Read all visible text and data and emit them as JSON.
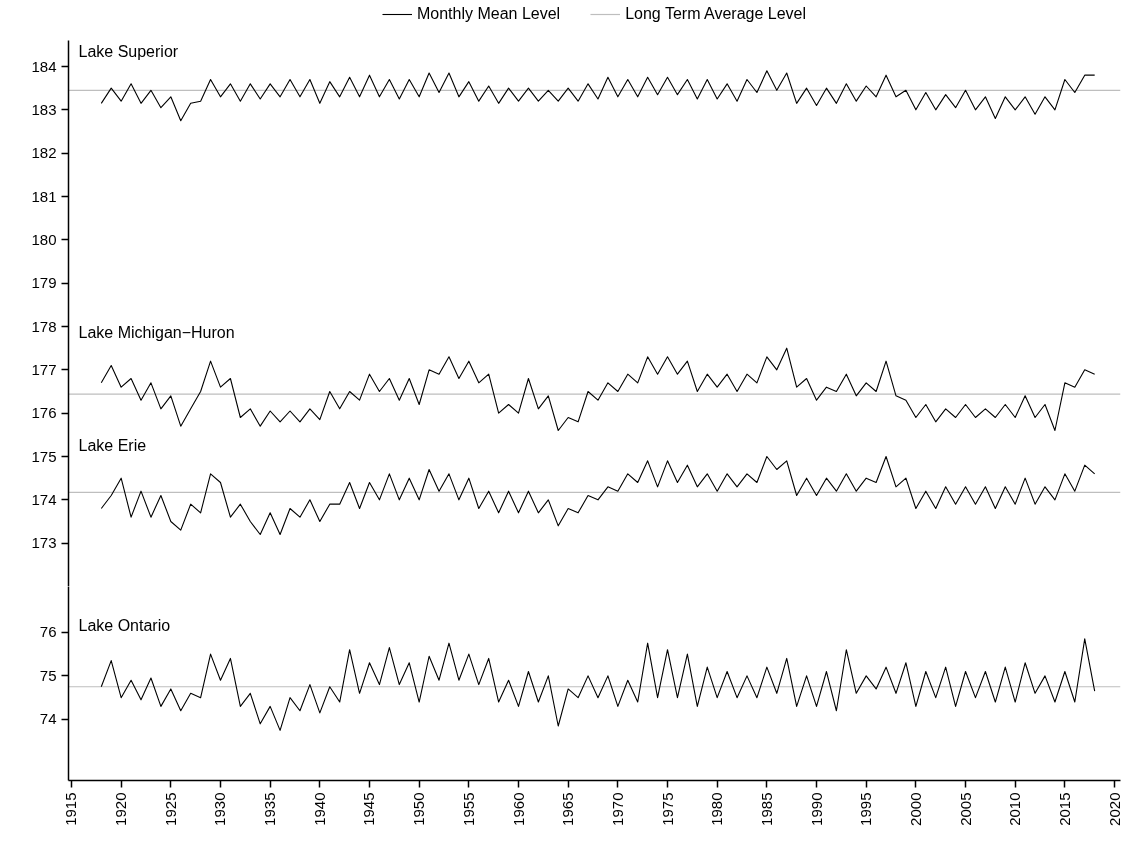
{
  "chart_data": [
    {
      "type": "line",
      "xlim": [
        1914.7,
        2020.6
      ],
      "ylim": [
        172,
        184.6
      ],
      "yticks": [
        173,
        174,
        175,
        176,
        177,
        178,
        179,
        180,
        181,
        182,
        183,
        184
      ],
      "tick_labels": "y",
      "legend": "top",
      "line_style": "solid",
      "marker": "none",
      "x": [
        1918,
        1919,
        1920,
        1921,
        1922,
        1923,
        1924,
        1925,
        1926,
        1927,
        1928,
        1929,
        1930,
        1931,
        1932,
        1933,
        1934,
        1935,
        1936,
        1937,
        1938,
        1939,
        1940,
        1941,
        1942,
        1943,
        1944,
        1945,
        1946,
        1947,
        1948,
        1949,
        1950,
        1951,
        1952,
        1953,
        1954,
        1955,
        1956,
        1957,
        1958,
        1959,
        1960,
        1961,
        1962,
        1963,
        1964,
        1965,
        1966,
        1967,
        1968,
        1969,
        1970,
        1971,
        1972,
        1973,
        1974,
        1975,
        1976,
        1977,
        1978,
        1979,
        1980,
        1981,
        1982,
        1983,
        1984,
        1985,
        1986,
        1987,
        1988,
        1989,
        1990,
        1991,
        1992,
        1993,
        1994,
        1995,
        1996,
        1997,
        1998,
        1999,
        2000,
        2001,
        2002,
        2003,
        2004,
        2005,
        2006,
        2007,
        2008,
        2009,
        2010,
        2011,
        2012,
        2013,
        2014,
        2015,
        2016,
        2017,
        2018
      ],
      "series": [
        {
          "name": "Monthly Mean Level",
          "color": "#000000",
          "values": [
            183.15,
            183.5,
            183.2,
            183.6,
            183.15,
            183.45,
            183.05,
            183.3,
            182.75,
            183.15,
            183.2,
            183.7,
            183.3,
            183.6,
            183.2,
            183.6,
            183.25,
            183.6,
            183.3,
            183.7,
            183.3,
            183.7,
            183.15,
            183.65,
            183.3,
            183.75,
            183.3,
            183.8,
            183.3,
            183.7,
            183.25,
            183.7,
            183.3,
            183.85,
            183.4,
            183.85,
            183.3,
            183.65,
            183.2,
            183.55,
            183.15,
            183.5,
            183.2,
            183.5,
            183.2,
            183.45,
            183.2,
            183.5,
            183.2,
            183.6,
            183.25,
            183.75,
            183.3,
            183.7,
            183.3,
            183.75,
            183.35,
            183.75,
            183.35,
            183.7,
            183.25,
            183.7,
            183.25,
            183.6,
            183.2,
            183.7,
            183.4,
            183.9,
            183.45,
            183.85,
            183.15,
            183.5,
            183.1,
            183.5,
            183.15,
            183.6,
            183.2,
            183.55,
            183.3,
            183.8,
            183.3,
            183.45,
            183.0,
            183.4,
            183.0,
            183.35,
            183.05,
            183.45,
            183.0,
            183.3,
            182.8,
            183.3,
            183.0,
            183.3,
            182.9,
            183.3,
            183.0,
            183.7,
            183.4,
            183.8,
            183.8
          ]
        },
        {
          "color": "#000000",
          "values": [
            176.7,
            177.1,
            176.6,
            176.8,
            176.3,
            176.7,
            176.1,
            176.4,
            175.7,
            176.1,
            176.5,
            177.2,
            176.6,
            176.8,
            175.9,
            176.1,
            175.7,
            176.05,
            175.8,
            176.05,
            175.8,
            176.1,
            175.85,
            176.5,
            176.1,
            176.5,
            176.3,
            176.9,
            176.5,
            176.8,
            176.3,
            176.8,
            176.2,
            177.0,
            176.9,
            177.3,
            176.8,
            177.2,
            176.7,
            176.9,
            176.0,
            176.2,
            176.0,
            176.8,
            176.1,
            176.4,
            175.6,
            175.9,
            175.8,
            176.5,
            176.3,
            176.7,
            176.5,
            176.9,
            176.7,
            177.3,
            176.9,
            177.3,
            176.9,
            177.2,
            176.5,
            176.9,
            176.6,
            176.9,
            176.5,
            176.9,
            176.7,
            177.3,
            177.0,
            177.5,
            176.6,
            176.8,
            176.3,
            176.6,
            176.5,
            176.9,
            176.4,
            176.7,
            176.5,
            177.2,
            176.4,
            176.3,
            175.9,
            176.2,
            175.8,
            176.1,
            175.9,
            176.2,
            175.9,
            176.1,
            175.9,
            176.2,
            175.9,
            176.4,
            175.9,
            176.2,
            175.6,
            176.7,
            176.6,
            177.0,
            176.9
          ]
        },
        {
          "color": "#000000",
          "values": [
            173.8,
            174.1,
            174.5,
            173.6,
            174.2,
            173.6,
            174.1,
            173.5,
            173.3,
            173.9,
            173.7,
            174.6,
            174.4,
            173.6,
            173.9,
            173.5,
            173.2,
            173.7,
            173.2,
            173.8,
            173.6,
            174.0,
            173.5,
            173.9,
            173.9,
            174.4,
            173.8,
            174.4,
            174.0,
            174.6,
            174.0,
            174.5,
            174.0,
            174.7,
            174.2,
            174.6,
            174.0,
            174.5,
            173.8,
            174.2,
            173.7,
            174.2,
            173.7,
            174.2,
            173.7,
            174.0,
            173.4,
            173.8,
            173.7,
            174.1,
            174.0,
            174.3,
            174.2,
            174.6,
            174.4,
            174.9,
            174.3,
            174.9,
            174.4,
            174.8,
            174.3,
            174.6,
            174.2,
            174.6,
            174.3,
            174.6,
            174.4,
            175.0,
            174.7,
            174.9,
            174.1,
            174.5,
            174.1,
            174.5,
            174.2,
            174.6,
            174.2,
            174.5,
            174.4,
            175.0,
            174.3,
            174.5,
            173.8,
            174.2,
            173.8,
            174.3,
            173.9,
            174.3,
            173.9,
            174.3,
            173.8,
            174.3,
            173.9,
            174.5,
            173.9,
            174.3,
            174.0,
            174.6,
            174.2,
            174.8,
            174.6
          ]
        }
      ],
      "ref_lines": [
        {
          "axis": "y",
          "value": 183.45,
          "label": "Long Term Average Level",
          "color": "#bebebe"
        },
        {
          "axis": "y",
          "value": 176.44,
          "color": "#bebebe"
        },
        {
          "axis": "y",
          "value": 174.17,
          "color": "#bebebe"
        }
      ],
      "annotations": [
        "Lake Superior",
        "Lake Michigan−Huron",
        "Lake Erie"
      ]
    },
    {
      "type": "line",
      "xlim": [
        1914.7,
        2020.6
      ],
      "ylim": [
        72.6,
        77.05
      ],
      "yticks": [
        74,
        75,
        76
      ],
      "xticks": [
        1915,
        1920,
        1925,
        1930,
        1935,
        1940,
        1945,
        1950,
        1955,
        1960,
        1965,
        1970,
        1975,
        1980,
        1985,
        1990,
        1995,
        2000,
        2005,
        2010,
        2015,
        2020
      ],
      "line_style": "solid",
      "marker": "none",
      "x": [
        1918,
        1919,
        1920,
        1921,
        1922,
        1923,
        1924,
        1925,
        1926,
        1927,
        1928,
        1929,
        1930,
        1931,
        1932,
        1933,
        1934,
        1935,
        1936,
        1937,
        1938,
        1939,
        1940,
        1941,
        1942,
        1943,
        1944,
        1945,
        1946,
        1947,
        1948,
        1949,
        1950,
        1951,
        1952,
        1953,
        1954,
        1955,
        1956,
        1957,
        1958,
        1959,
        1960,
        1961,
        1962,
        1963,
        1964,
        1965,
        1966,
        1967,
        1968,
        1969,
        1970,
        1971,
        1972,
        1973,
        1974,
        1975,
        1976,
        1977,
        1978,
        1979,
        1980,
        1981,
        1982,
        1983,
        1984,
        1985,
        1986,
        1987,
        1988,
        1989,
        1990,
        1991,
        1992,
        1993,
        1994,
        1995,
        1996,
        1997,
        1998,
        1999,
        2000,
        2001,
        2002,
        2003,
        2004,
        2005,
        2006,
        2007,
        2008,
        2009,
        2010,
        2011,
        2012,
        2013,
        2014,
        2015,
        2016,
        2017,
        2018
      ],
      "series": [
        {
          "color": "#000000",
          "values": [
            74.75,
            75.35,
            74.5,
            74.9,
            74.45,
            74.95,
            74.3,
            74.7,
            74.2,
            74.6,
            74.5,
            75.5,
            74.9,
            75.4,
            74.3,
            74.6,
            73.9,
            74.3,
            73.75,
            74.5,
            74.2,
            74.8,
            74.15,
            74.75,
            74.4,
            75.6,
            74.6,
            75.3,
            74.8,
            75.65,
            74.8,
            75.3,
            74.4,
            75.45,
            74.9,
            75.75,
            74.9,
            75.5,
            74.8,
            75.4,
            74.4,
            74.9,
            74.3,
            75.1,
            74.4,
            75.0,
            73.85,
            74.7,
            74.5,
            75.0,
            74.5,
            75.0,
            74.3,
            74.9,
            74.4,
            75.75,
            74.5,
            75.6,
            74.5,
            75.5,
            74.3,
            75.2,
            74.5,
            75.1,
            74.5,
            75.0,
            74.5,
            75.2,
            74.6,
            75.4,
            74.3,
            75.0,
            74.3,
            75.1,
            74.2,
            75.6,
            74.6,
            75.0,
            74.7,
            75.2,
            74.6,
            75.3,
            74.3,
            75.1,
            74.5,
            75.2,
            74.3,
            75.1,
            74.5,
            75.1,
            74.4,
            75.2,
            74.4,
            75.3,
            74.6,
            75.0,
            74.4,
            75.1,
            74.4,
            75.85,
            74.65
          ]
        }
      ],
      "ref_lines": [
        {
          "axis": "y",
          "value": 74.75,
          "color": "#bebebe"
        }
      ],
      "annotations": [
        "Lake Ontario"
      ]
    }
  ]
}
